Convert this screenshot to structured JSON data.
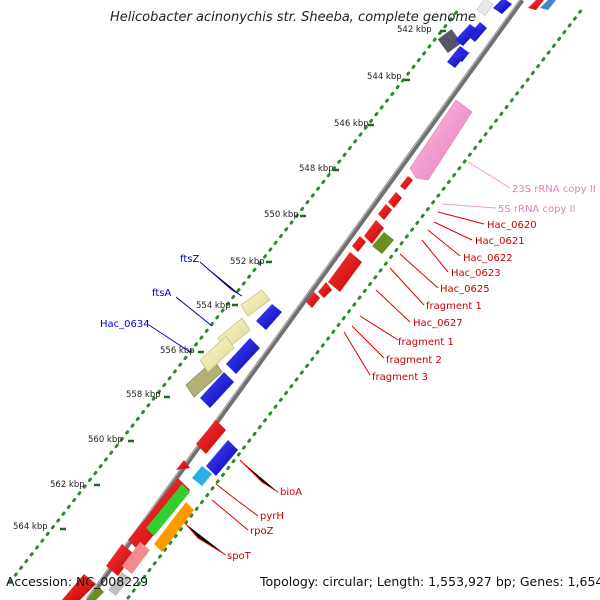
{
  "title": "Helicobacter acinonychis str. Sheeba, complete genome",
  "footer": {
    "accession": "Accession: NC_008229",
    "summary": "Topology: circular; Length: 1,553,927 bp; Genes: 1,654"
  },
  "ticks": [
    "542 kbp",
    "544 kbp",
    "546 kbp",
    "548 kbp",
    "550 kbp",
    "552 kbp",
    "554 kbp",
    "556 kbp",
    "558 kbp",
    "560 kbp",
    "562 kbp",
    "564 kbp"
  ],
  "colors": {
    "backbone": "#8a8a8a",
    "cds_forward": "#0000e0",
    "cds_reverse": "#e00000",
    "rrna": "#f59ad0",
    "rrna_label": "#e87fb8",
    "pseudo": "#e9e5a8",
    "pseudo_dark": "#a8a76a",
    "trna": "#6b8e23",
    "gc_dots": "#2e8b2e",
    "gene_label_blue": "#0000cc",
    "gene_label_red": "#cc0000"
  },
  "left_labels": [
    "ftsZ",
    "ftsA",
    "Hac_0634"
  ],
  "right_labels": [
    "23S rRNA copy II",
    "5S rRNA copy II",
    "Hac_0620",
    "Hac_0621",
    "Hac_0622",
    "Hac_0623",
    "Hac_0625",
    "fragment 1",
    "Hac_0627",
    "fragment 1",
    "fragment 2",
    "fragment 3"
  ],
  "bottom_labels": [
    "bioA",
    "pyrH",
    "rpoZ",
    "spoT"
  ]
}
